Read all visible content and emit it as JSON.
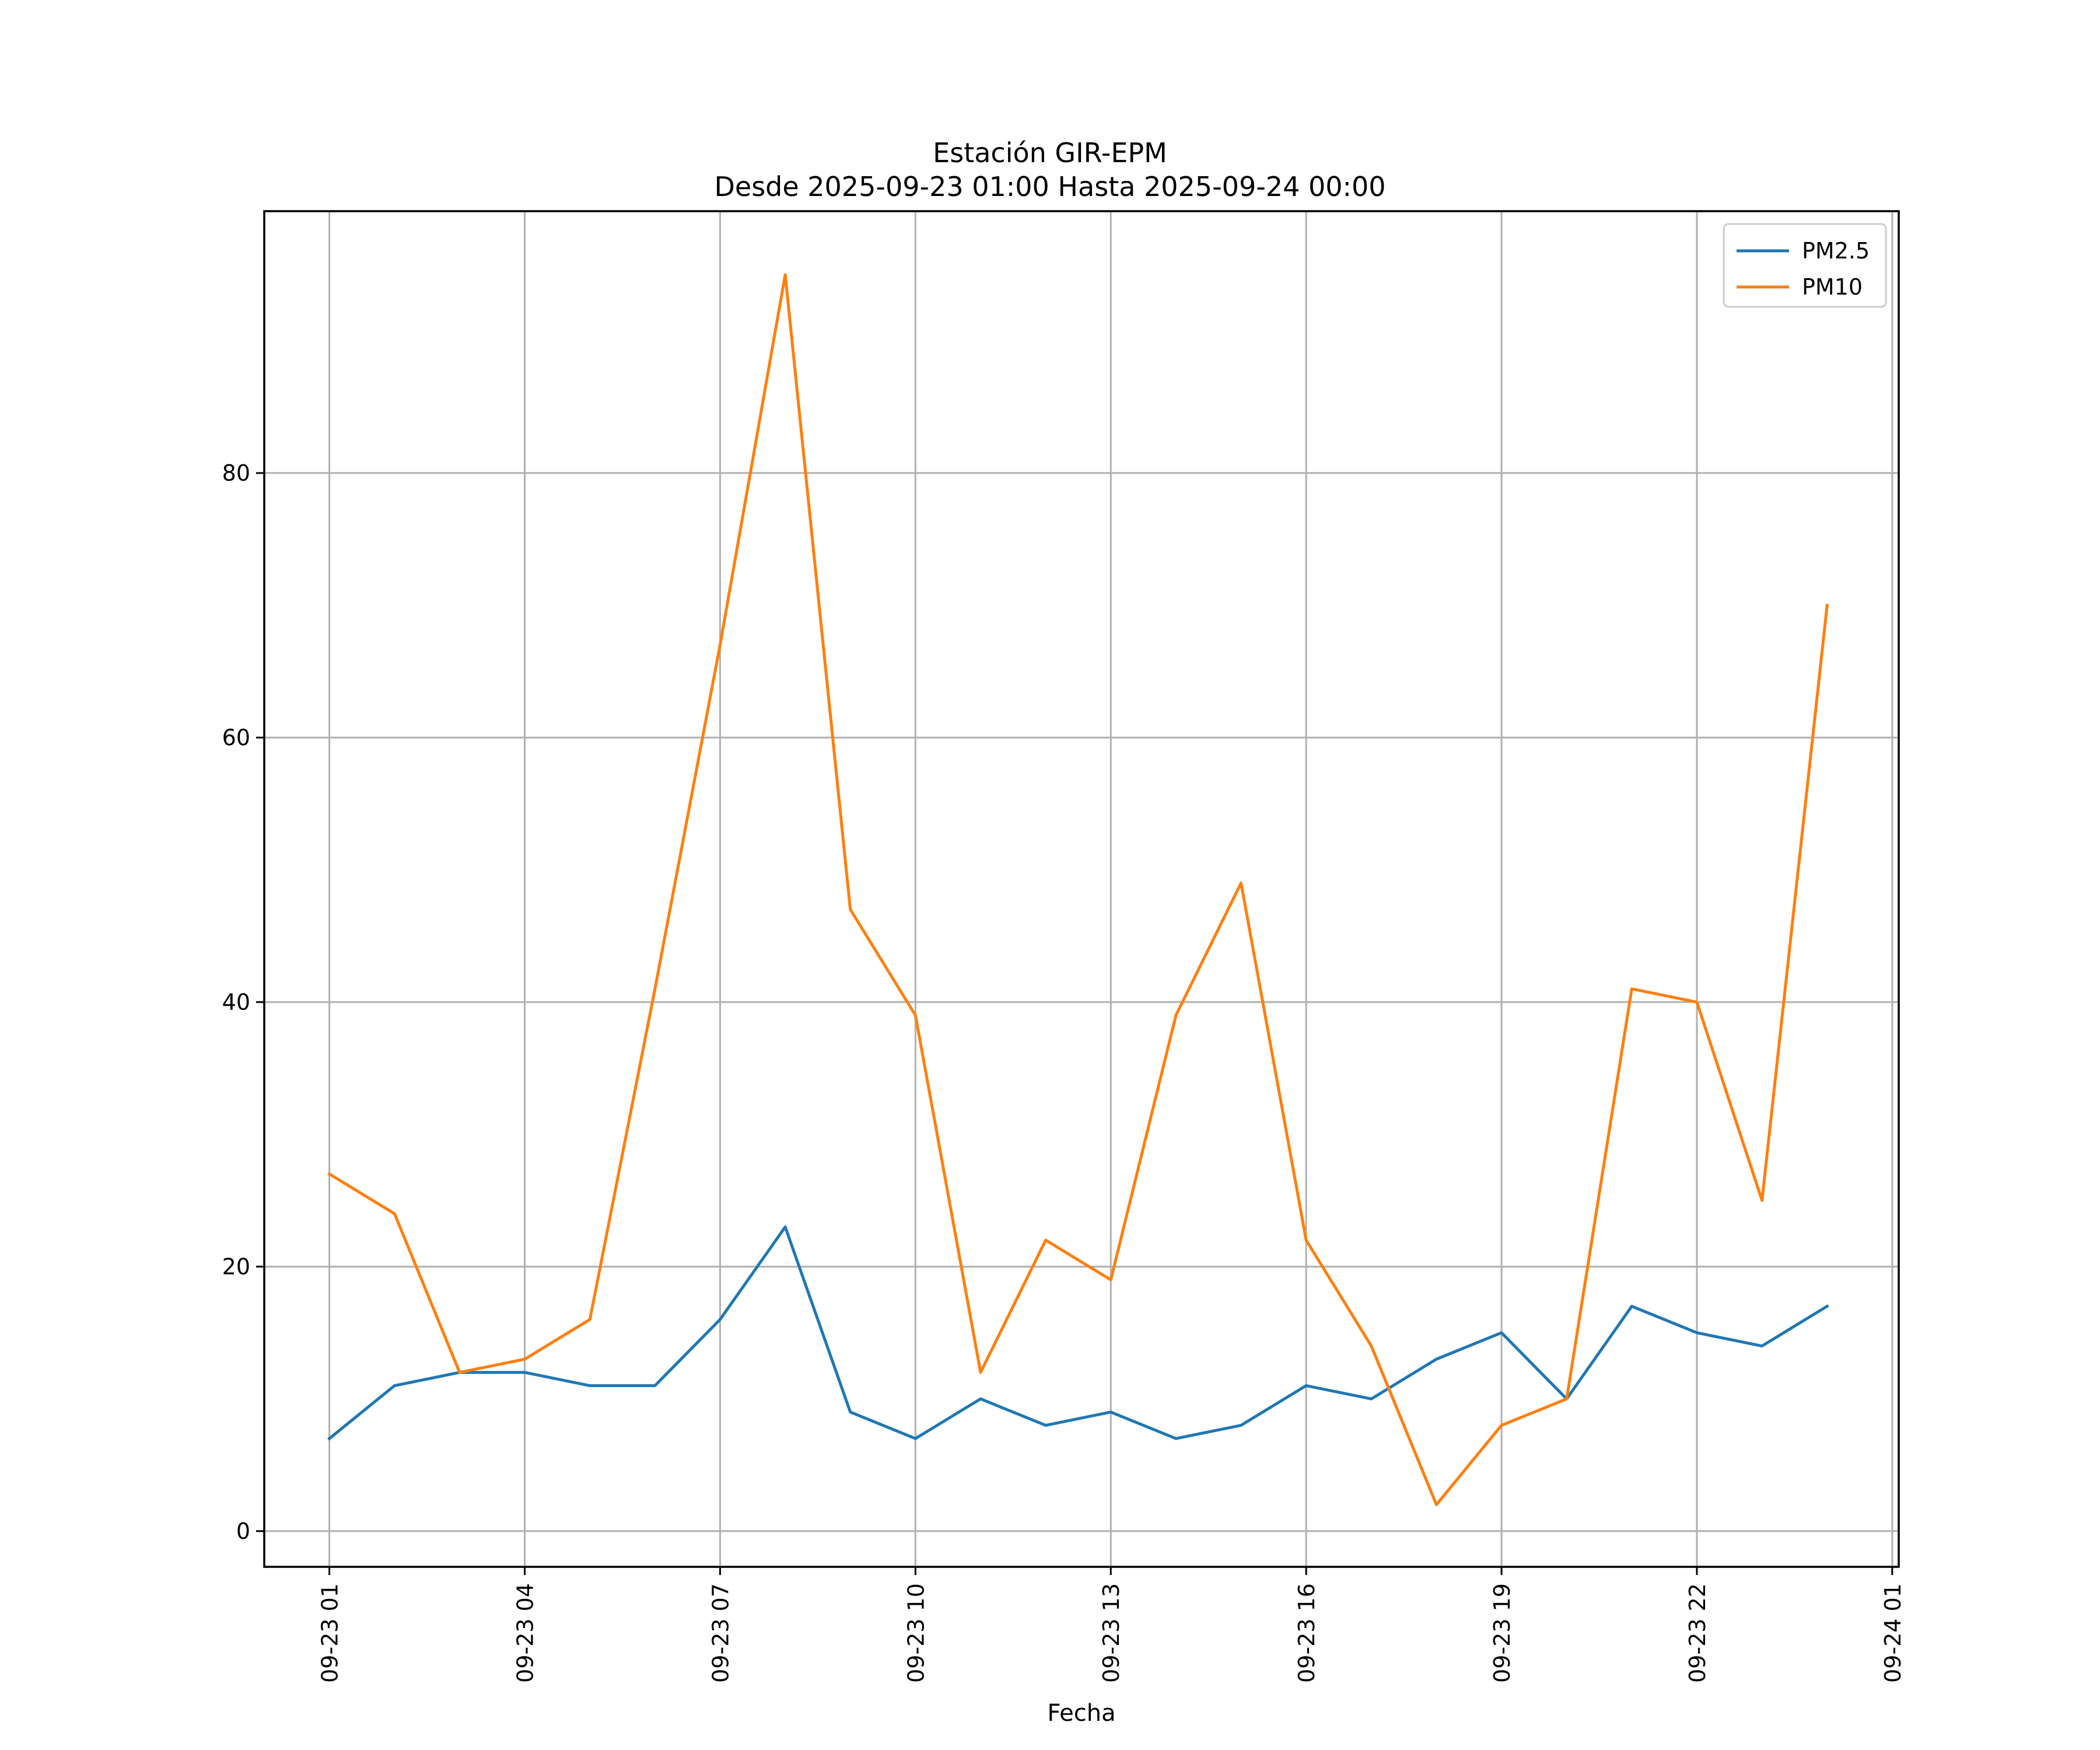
{
  "chart_data": {
    "type": "line",
    "title": [
      "Estación GIR-EPM",
      "Desde 2025-09-23 01:00 Hasta 2025-09-24 00:00"
    ],
    "xlabel": "Fecha",
    "ylabel": "",
    "grid": true,
    "legend_position": "top-right",
    "x_hours": [
      1,
      2,
      3,
      4,
      5,
      6,
      7,
      8,
      9,
      10,
      11,
      12,
      13,
      14,
      15,
      16,
      17,
      18,
      19,
      20,
      21,
      22,
      23,
      24
    ],
    "xlim": [
      0.0,
      25.1
    ],
    "ylim": [
      -2.7,
      99.8
    ],
    "x_ticks": [
      {
        "hour": 1,
        "label": "09-23 01"
      },
      {
        "hour": 4,
        "label": "09-23 04"
      },
      {
        "hour": 7,
        "label": "09-23 07"
      },
      {
        "hour": 10,
        "label": "09-23 10"
      },
      {
        "hour": 13,
        "label": "09-23 13"
      },
      {
        "hour": 16,
        "label": "09-23 16"
      },
      {
        "hour": 19,
        "label": "09-23 19"
      },
      {
        "hour": 22,
        "label": "09-23 22"
      },
      {
        "hour": 25,
        "label": "09-24 01"
      }
    ],
    "y_ticks": [
      0,
      20,
      40,
      60,
      80
    ],
    "series": [
      {
        "name": "PM2.5",
        "color": "#1f77b4",
        "values": [
          7,
          11,
          12,
          12,
          11,
          11,
          16,
          23,
          9,
          7,
          10,
          8,
          9,
          7,
          8,
          11,
          10,
          13,
          15,
          10,
          17,
          15,
          14,
          17
        ]
      },
      {
        "name": "PM10",
        "color": "#ff7f0e",
        "values": [
          27,
          24,
          12,
          13,
          16,
          41,
          67,
          95,
          47,
          39,
          12,
          22,
          19,
          39,
          49,
          22,
          14,
          2,
          8,
          10,
          41,
          40,
          25,
          70
        ]
      }
    ]
  }
}
